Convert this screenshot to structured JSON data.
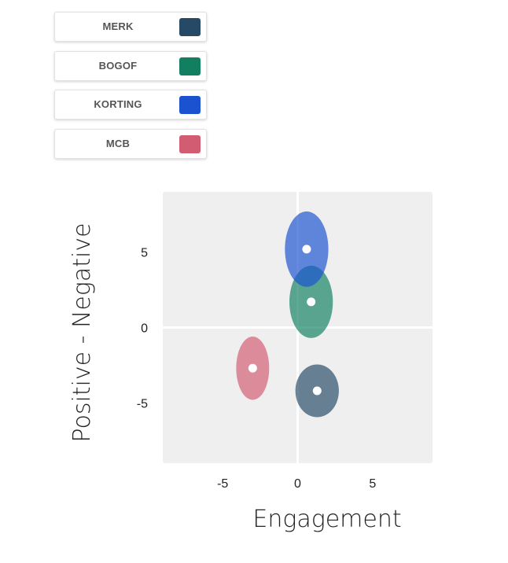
{
  "legend": {
    "items": [
      {
        "label": "MERK",
        "color": "#264a66"
      },
      {
        "label": "BOGOF",
        "color": "#128060"
      },
      {
        "label": "KORTING",
        "color": "#1a52d0"
      },
      {
        "label": "MCB",
        "color": "#d25c72"
      }
    ]
  },
  "chart_data": {
    "type": "scatter",
    "xlabel": "Engagement",
    "ylabel": "Positive - Negative",
    "xlim": [
      -9,
      9
    ],
    "ylim": [
      -9,
      9
    ],
    "xticks": [
      -5,
      0,
      5
    ],
    "yticks": [
      5,
      0,
      -5
    ],
    "grid": true,
    "background": "#efefef",
    "series": [
      {
        "name": "MERK",
        "x": 1.3,
        "y": -4.2,
        "rx": 1.45,
        "ry": 1.75,
        "color": "#264a66"
      },
      {
        "name": "BOGOF",
        "x": 0.9,
        "y": 1.7,
        "rx": 1.45,
        "ry": 2.4,
        "color": "#128060"
      },
      {
        "name": "KORTING",
        "x": 0.6,
        "y": 5.2,
        "rx": 1.45,
        "ry": 2.5,
        "color": "#1a52d0"
      },
      {
        "name": "MCB",
        "x": -3.0,
        "y": -2.7,
        "rx": 1.1,
        "ry": 2.1,
        "color": "#d25c72"
      }
    ]
  }
}
